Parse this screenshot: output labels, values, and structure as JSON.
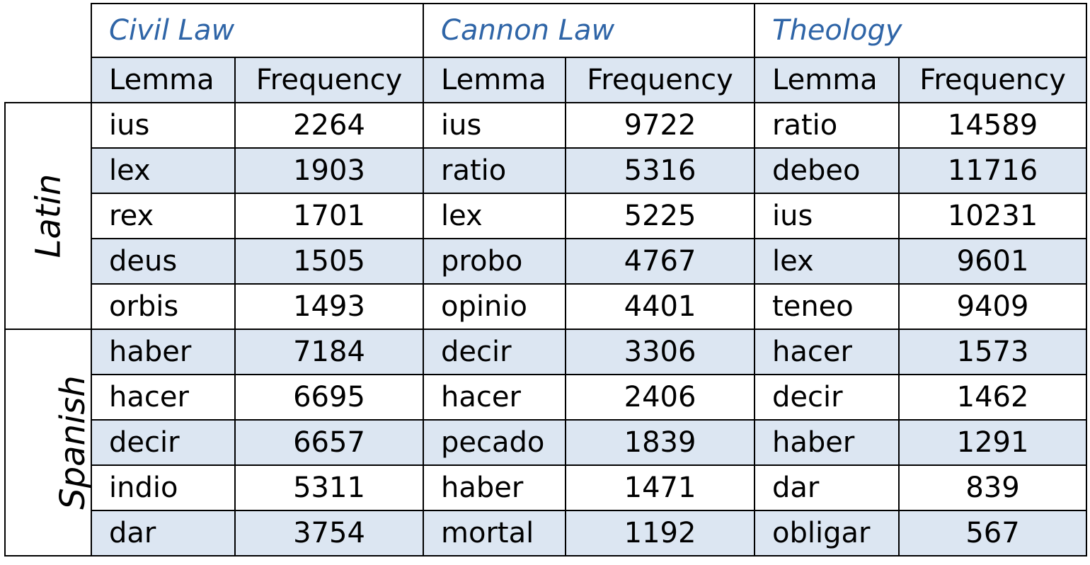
{
  "domains": [
    "Civil Law",
    "Cannon Law",
    "Theology"
  ],
  "column_headers": {
    "lemma": "Lemma",
    "frequency": "Frequency"
  },
  "languages": [
    "Latin",
    "Spanish"
  ],
  "rows": [
    {
      "lang": "Latin",
      "cells": [
        [
          "ius",
          "2264"
        ],
        [
          "ius",
          "9722"
        ],
        [
          "ratio",
          "14589"
        ]
      ]
    },
    {
      "lang": "Latin",
      "cells": [
        [
          "lex",
          "1903"
        ],
        [
          "ratio",
          "5316"
        ],
        [
          "debeo",
          "11716"
        ]
      ]
    },
    {
      "lang": "Latin",
      "cells": [
        [
          "rex",
          "1701"
        ],
        [
          "lex",
          "5225"
        ],
        [
          "ius",
          "10231"
        ]
      ]
    },
    {
      "lang": "Latin",
      "cells": [
        [
          "deus",
          "1505"
        ],
        [
          "probo",
          "4767"
        ],
        [
          "lex",
          "9601"
        ]
      ]
    },
    {
      "lang": "Latin",
      "cells": [
        [
          "orbis",
          "1493"
        ],
        [
          "opinio",
          "4401"
        ],
        [
          "teneo",
          "9409"
        ]
      ]
    },
    {
      "lang": "Spanish",
      "cells": [
        [
          "haber",
          "7184"
        ],
        [
          "decir",
          "3306"
        ],
        [
          "hacer",
          "1573"
        ]
      ]
    },
    {
      "lang": "Spanish",
      "cells": [
        [
          "hacer",
          "6695"
        ],
        [
          "hacer",
          "2406"
        ],
        [
          "decir",
          "1462"
        ]
      ]
    },
    {
      "lang": "Spanish",
      "cells": [
        [
          "decir",
          "6657"
        ],
        [
          "pecado",
          "1839"
        ],
        [
          "haber",
          "1291"
        ]
      ]
    },
    {
      "lang": "Spanish",
      "cells": [
        [
          "indio",
          "5311"
        ],
        [
          "haber",
          "1471"
        ],
        [
          "dar",
          "839"
        ]
      ]
    },
    {
      "lang": "Spanish",
      "cells": [
        [
          "dar",
          "3754"
        ],
        [
          "mortal",
          "1192"
        ],
        [
          "obligar",
          "567"
        ]
      ]
    }
  ]
}
